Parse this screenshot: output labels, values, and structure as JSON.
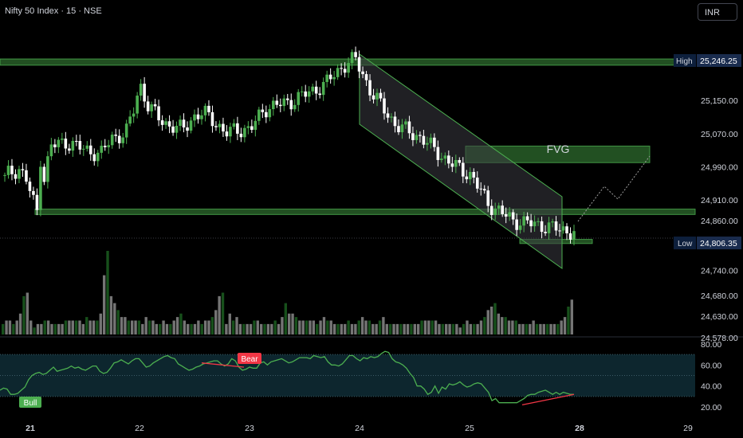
{
  "header": {
    "title": "Nifty 50 Index · 15 · NSE",
    "currency_button": "INR"
  },
  "colors": {
    "up": "#4caf50",
    "down": "#ffffff",
    "zone": "#2e6b2e",
    "rsi": "#4caf50",
    "bear": "#f23645",
    "bull": "#4caf50",
    "channel": "#4caf50",
    "text": "#d1d4dc"
  },
  "badges": {
    "high": {
      "label": "High",
      "value": "25,246.25"
    },
    "low": {
      "label": "Low",
      "value": "24,806.35"
    }
  },
  "annotations": {
    "fvg": "FVG",
    "bear": "Bear",
    "bull": "Bull"
  },
  "chart_data": [
    {
      "type": "candlestick",
      "title": "Nifty 50 Index · 15 · NSE",
      "ylim": [
        24540,
        25290
      ],
      "price_ticks": [
        {
          "value": 25150,
          "label": "25,150.00"
        },
        {
          "value": 25070,
          "label": "25,070.00"
        },
        {
          "value": 24990,
          "label": "24,990.00"
        },
        {
          "value": 24910,
          "label": "24,910.00"
        },
        {
          "value": 24860,
          "label": "24,860.00"
        },
        {
          "value": 24740,
          "label": "24,740.00"
        },
        {
          "value": 24680,
          "label": "24,680.00"
        },
        {
          "value": 24630,
          "label": "24,630.00"
        },
        {
          "value": 24578,
          "label": "24,578.00"
        }
      ],
      "x_ticks": [
        "21",
        "22",
        "23",
        "24",
        "25",
        "28",
        "29"
      ],
      "zones": [
        {
          "name": "resistance",
          "from": 25235,
          "to": 25250
        },
        {
          "name": "support",
          "from": 24875,
          "to": 24888
        },
        {
          "name": "FVG",
          "from": 25000,
          "to": 25040
        },
        {
          "name": "low_zone",
          "from": 24805,
          "to": 24815
        }
      ],
      "session_markers": [
        {
          "label": "21",
          "start_value": 24970
        },
        {
          "label": "22",
          "start_value": 25100
        },
        {
          "label": "23",
          "start_value": 25135
        },
        {
          "label": "24",
          "start_value": 25240
        },
        {
          "label": "25",
          "start_value": 24985
        },
        {
          "label": "28",
          "start_value": 24832
        }
      ]
    },
    {
      "type": "line",
      "name": "RSI",
      "ylim": [
        12,
        95
      ],
      "ticks": [
        {
          "value": 80,
          "label": "80.00"
        },
        {
          "value": 60,
          "label": "60.00"
        },
        {
          "value": 40,
          "label": "40.00"
        },
        {
          "value": 20,
          "label": "20.00"
        }
      ],
      "band": [
        30,
        70
      ],
      "values": [
        36,
        38,
        37,
        32,
        32,
        33,
        36,
        39,
        46,
        50,
        52,
        53,
        51,
        52,
        55,
        58,
        54,
        55,
        56,
        57,
        59,
        57,
        58,
        56,
        55,
        57,
        59,
        59,
        54,
        52,
        53,
        57,
        62,
        63,
        65,
        63,
        61,
        64,
        66,
        66,
        62,
        58,
        59,
        62,
        64,
        66,
        68,
        69,
        67,
        66,
        61,
        59,
        57,
        55,
        56,
        58,
        59,
        61,
        62,
        63,
        64,
        64,
        61,
        59,
        61,
        66,
        64,
        58,
        55,
        56,
        58,
        57,
        57,
        62,
        63,
        60,
        63,
        64,
        65,
        66,
        64,
        62,
        63,
        65,
        67,
        67,
        67,
        66,
        69,
        68,
        67,
        68,
        63,
        60,
        60,
        59,
        61,
        65,
        69,
        69,
        66,
        64,
        67,
        66,
        68,
        67,
        68,
        71,
        73,
        72,
        66,
        63,
        62,
        60,
        57,
        52,
        48,
        40,
        40,
        37,
        32,
        34,
        40,
        33,
        39,
        37,
        42,
        41,
        42,
        44,
        41,
        39,
        40,
        42,
        43,
        42,
        38,
        34,
        26,
        28,
        24,
        24,
        24,
        24,
        24,
        24,
        26,
        28,
        31,
        32,
        32,
        34,
        35,
        36,
        34,
        32,
        34,
        32,
        34,
        33,
        32,
        32
      ]
    },
    {
      "type": "bar",
      "name": "Volume",
      "values": [
        3,
        4,
        4,
        3,
        4,
        6,
        11,
        12,
        4,
        2,
        3,
        3,
        4,
        4,
        3,
        3,
        3,
        3,
        4,
        4,
        4,
        4,
        4,
        3,
        5,
        4,
        4,
        4,
        6,
        17,
        24,
        11,
        9,
        7,
        5,
        5,
        4,
        4,
        4,
        4,
        3,
        5,
        4,
        4,
        3,
        3,
        4,
        3,
        3,
        4,
        5,
        6,
        4,
        3,
        3,
        3,
        4,
        3,
        4,
        4,
        5,
        7,
        11,
        12,
        3,
        6,
        4,
        5,
        3,
        3,
        3,
        3,
        4,
        4,
        3,
        3,
        3,
        3,
        4,
        3,
        5,
        9,
        6,
        6,
        5,
        4,
        4,
        4,
        4,
        4,
        3,
        4,
        5,
        4,
        4,
        3,
        3,
        3,
        3,
        4,
        3,
        3,
        4,
        5,
        4,
        4,
        3,
        3,
        4,
        5,
        3,
        3,
        3,
        3,
        3,
        3,
        3,
        3,
        3,
        3,
        4,
        4,
        4,
        4,
        4,
        3,
        3,
        3,
        3,
        3,
        3,
        2,
        3,
        4,
        3,
        3,
        3,
        4,
        5,
        7,
        8,
        9,
        6,
        5,
        5,
        4,
        4,
        4,
        3,
        3,
        3,
        3,
        4,
        3,
        3,
        3,
        3,
        3,
        3,
        3,
        4,
        5,
        8,
        10
      ]
    }
  ]
}
